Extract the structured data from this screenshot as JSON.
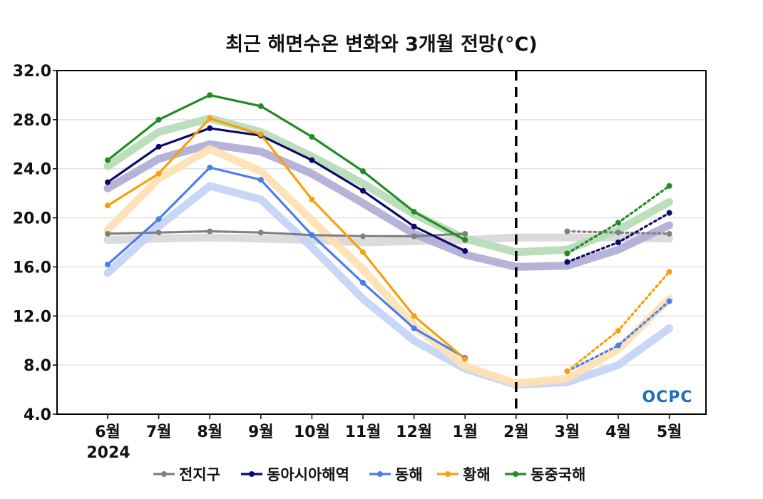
{
  "chart_data": {
    "type": "line",
    "title": "최근 해면수온 변화와 3개월 전망(°C)",
    "year_label": "2024",
    "categories": [
      "6월",
      "7월",
      "8월",
      "9월",
      "10월",
      "11월",
      "12월",
      "1월",
      "2월",
      "3월",
      "4월",
      "5월"
    ],
    "ylim": [
      4.0,
      32.0
    ],
    "yticks": [
      "4.0",
      "8.0",
      "12.0",
      "16.0",
      "20.0",
      "24.0",
      "28.0",
      "32.0"
    ],
    "grid": true,
    "forecast_divider_at": "2월",
    "legend_position": "bottom",
    "series": [
      {
        "name": "전지구",
        "color": "#808080",
        "band_color": "#d9d9d9",
        "observed": [
          18.7,
          18.8,
          18.9,
          18.8,
          18.6,
          18.5,
          18.5,
          18.7,
          null,
          null,
          null,
          null
        ],
        "forecast": [
          null,
          null,
          null,
          null,
          null,
          null,
          null,
          null,
          null,
          18.9,
          18.8,
          18.7
        ],
        "normal": [
          18.2,
          18.3,
          18.4,
          18.3,
          18.2,
          18.0,
          18.1,
          18.2,
          18.4,
          18.4,
          18.4,
          18.3
        ]
      },
      {
        "name": "동아시아해역",
        "color": "#0a0a6e",
        "band_color": "#b2aed6",
        "observed": [
          22.9,
          25.8,
          27.3,
          26.7,
          24.7,
          22.2,
          19.3,
          17.3,
          null,
          null,
          null,
          null
        ],
        "forecast": [
          null,
          null,
          null,
          null,
          null,
          null,
          null,
          null,
          null,
          16.4,
          18.0,
          20.4
        ],
        "normal": [
          22.4,
          24.8,
          26.0,
          25.4,
          23.6,
          21.2,
          18.7,
          17.0,
          16.0,
          16.1,
          17.4,
          19.4
        ]
      },
      {
        "name": "동해",
        "color": "#4a7ef0",
        "band_color": "#c5d4f7",
        "observed": [
          16.2,
          19.9,
          24.1,
          23.1,
          18.6,
          14.7,
          11.0,
          8.6,
          null,
          null,
          null,
          null
        ],
        "forecast": [
          null,
          null,
          null,
          null,
          null,
          null,
          null,
          null,
          null,
          7.5,
          9.6,
          13.2
        ],
        "normal": [
          15.5,
          19.3,
          22.6,
          21.5,
          17.6,
          13.4,
          10.0,
          7.7,
          6.4,
          6.6,
          8.0,
          11.0
        ]
      },
      {
        "name": "황해",
        "color": "#f8a00a",
        "band_color": "#fde1b3",
        "observed": [
          21.0,
          23.6,
          28.1,
          26.8,
          21.5,
          17.2,
          12.0,
          8.5,
          null,
          null,
          null,
          null
        ],
        "forecast": [
          null,
          null,
          null,
          null,
          null,
          null,
          null,
          null,
          null,
          7.5,
          10.8,
          15.6
        ],
        "normal": [
          19.0,
          23.2,
          25.6,
          23.8,
          19.8,
          15.8,
          11.2,
          7.9,
          6.5,
          6.9,
          9.3,
          13.4
        ]
      },
      {
        "name": "동중국해",
        "color": "#228b22",
        "band_color": "#b8dcb8",
        "observed": [
          24.7,
          28.0,
          30.0,
          29.1,
          26.6,
          23.8,
          20.5,
          18.2,
          null,
          null,
          null,
          null
        ],
        "forecast": [
          null,
          null,
          null,
          null,
          null,
          null,
          null,
          null,
          null,
          17.1,
          19.6,
          22.6
        ],
        "normal": [
          24.2,
          27.0,
          28.1,
          27.0,
          25.0,
          22.8,
          20.3,
          18.3,
          17.2,
          17.4,
          19.0,
          21.3
        ]
      }
    ],
    "logo": "OCPC"
  }
}
